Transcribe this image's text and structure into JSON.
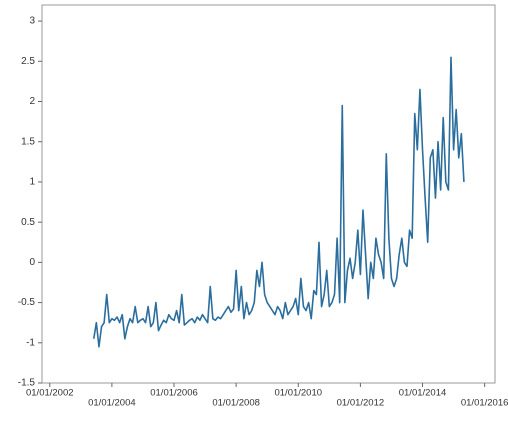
{
  "chart_data": {
    "type": "line",
    "x": [
      "2003-06",
      "2003-07",
      "2003-08",
      "2003-09",
      "2003-10",
      "2003-11",
      "2003-12",
      "2004-01",
      "2004-02",
      "2004-03",
      "2004-04",
      "2004-05",
      "2004-06",
      "2004-07",
      "2004-08",
      "2004-09",
      "2004-10",
      "2004-11",
      "2004-12",
      "2005-01",
      "2005-02",
      "2005-03",
      "2005-04",
      "2005-05",
      "2005-06",
      "2005-07",
      "2005-08",
      "2005-09",
      "2005-10",
      "2005-11",
      "2005-12",
      "2006-01",
      "2006-02",
      "2006-03",
      "2006-04",
      "2006-05",
      "2006-06",
      "2006-07",
      "2006-08",
      "2006-09",
      "2006-10",
      "2006-11",
      "2006-12",
      "2007-01",
      "2007-02",
      "2007-03",
      "2007-04",
      "2007-05",
      "2007-06",
      "2007-07",
      "2007-08",
      "2007-09",
      "2007-10",
      "2007-11",
      "2007-12",
      "2008-01",
      "2008-02",
      "2008-03",
      "2008-04",
      "2008-05",
      "2008-06",
      "2008-07",
      "2008-08",
      "2008-09",
      "2008-10",
      "2008-11",
      "2008-12",
      "2009-01",
      "2009-02",
      "2009-03",
      "2009-04",
      "2009-05",
      "2009-06",
      "2009-07",
      "2009-08",
      "2009-09",
      "2009-10",
      "2009-11",
      "2009-12",
      "2010-01",
      "2010-02",
      "2010-03",
      "2010-04",
      "2010-05",
      "2010-06",
      "2010-07",
      "2010-08",
      "2010-09",
      "2010-10",
      "2010-11",
      "2010-12",
      "2011-01",
      "2011-02",
      "2011-03",
      "2011-04",
      "2011-05",
      "2011-06",
      "2011-07",
      "2011-08",
      "2011-09",
      "2011-10",
      "2011-11",
      "2011-12",
      "2012-01",
      "2012-02",
      "2012-03",
      "2012-04",
      "2012-05",
      "2012-06",
      "2012-07",
      "2012-08",
      "2012-09",
      "2012-10",
      "2012-11",
      "2012-12",
      "2013-01",
      "2013-02",
      "2013-03",
      "2013-04",
      "2013-05",
      "2013-06",
      "2013-07",
      "2013-08",
      "2013-09",
      "2013-10",
      "2013-11",
      "2013-12",
      "2014-01",
      "2014-02",
      "2014-03",
      "2014-04",
      "2014-05",
      "2014-06",
      "2014-07",
      "2014-08",
      "2014-09",
      "2014-10",
      "2014-11",
      "2014-12",
      "2015-01",
      "2015-02",
      "2015-03",
      "2015-04",
      "2015-05"
    ],
    "series": [
      {
        "color": "#2b6e9e",
        "values": [
          -0.95,
          -0.75,
          -1.05,
          -0.8,
          -0.75,
          -0.4,
          -0.75,
          -0.7,
          -0.72,
          -0.68,
          -0.75,
          -0.65,
          -0.95,
          -0.8,
          -0.7,
          -0.75,
          -0.55,
          -0.75,
          -0.72,
          -0.7,
          -0.75,
          -0.55,
          -0.8,
          -0.75,
          -0.5,
          -0.85,
          -0.78,
          -0.72,
          -0.75,
          -0.65,
          -0.7,
          -0.72,
          -0.6,
          -0.75,
          -0.4,
          -0.78,
          -0.75,
          -0.72,
          -0.7,
          -0.75,
          -0.68,
          -0.72,
          -0.65,
          -0.7,
          -0.75,
          -0.3,
          -0.7,
          -0.72,
          -0.68,
          -0.7,
          -0.65,
          -0.6,
          -0.55,
          -0.62,
          -0.58,
          -0.1,
          -0.6,
          -0.3,
          -0.7,
          -0.5,
          -0.65,
          -0.6,
          -0.5,
          -0.1,
          -0.3,
          0.0,
          -0.4,
          -0.5,
          -0.55,
          -0.6,
          -0.65,
          -0.55,
          -0.6,
          -0.7,
          -0.5,
          -0.65,
          -0.6,
          -0.55,
          -0.45,
          -0.65,
          -0.2,
          -0.55,
          -0.6,
          -0.5,
          -0.7,
          -0.35,
          -0.4,
          0.25,
          -0.55,
          -0.4,
          -0.1,
          -0.55,
          -0.5,
          -0.4,
          0.3,
          -0.5,
          1.95,
          -0.5,
          -0.1,
          0.05,
          -0.2,
          0.0,
          0.4,
          -0.15,
          0.65,
          0.1,
          -0.45,
          0.0,
          -0.2,
          0.3,
          0.1,
          0.0,
          -0.2,
          1.35,
          0.3,
          -0.2,
          -0.3,
          -0.2,
          0.1,
          0.3,
          0.0,
          -0.05,
          0.4,
          0.3,
          1.85,
          1.4,
          2.15,
          1.4,
          0.8,
          0.25,
          1.3,
          1.4,
          0.8,
          1.5,
          0.9,
          1.8,
          1.0,
          0.9,
          2.55,
          1.4,
          1.9,
          1.3,
          1.6,
          1.0
        ]
      }
    ],
    "xlim": [
      "2001-10-01",
      "2016-05-01"
    ],
    "xticks": [
      {
        "value": "2002-01-01",
        "label": "01/01/2002"
      },
      {
        "value": "2004-01-01",
        "label": "01/01/2004"
      },
      {
        "value": "2006-01-01",
        "label": "01/01/2006"
      },
      {
        "value": "2008-01-01",
        "label": "01/01/2008"
      },
      {
        "value": "2010-01-01",
        "label": "01/01/2010"
      },
      {
        "value": "2012-01-01",
        "label": "01/01/2012"
      },
      {
        "value": "2014-01-01",
        "label": "01/01/2014"
      },
      {
        "value": "2016-01-01",
        "label": "01/01/2016"
      }
    ],
    "ylim": [
      -1.5,
      3.2
    ],
    "yticks": [
      -1.5,
      -1,
      -0.5,
      0,
      0.5,
      1,
      1.5,
      2,
      2.5,
      3
    ],
    "grid": false
  }
}
